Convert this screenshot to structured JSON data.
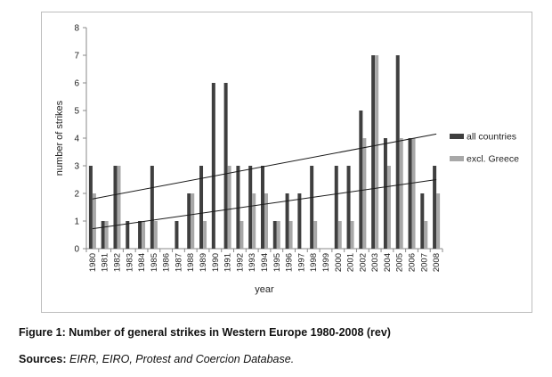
{
  "chart_data": {
    "type": "bar",
    "title": "",
    "xlabel": "year",
    "ylabel": "number of strikes",
    "ylim": [
      0,
      8
    ],
    "yticks": [
      "0",
      "1",
      "2",
      "3",
      "4",
      "5",
      "6",
      "7",
      "8"
    ],
    "categories": [
      "1980",
      "1981",
      "1982",
      "1983",
      "1984",
      "1985",
      "1986",
      "1987",
      "1988",
      "1989",
      "1990",
      "1991",
      "1992",
      "1993",
      "1994",
      "1995",
      "1996",
      "1997",
      "1998",
      "1999",
      "2000",
      "2001",
      "2002",
      "2003",
      "2004",
      "2005",
      "2006",
      "2007",
      "2008"
    ],
    "series": [
      {
        "name": "all countries",
        "color": "#3f3f3f",
        "values": [
          3,
          1,
          3,
          1,
          1,
          3,
          0,
          1,
          2,
          3,
          6,
          6,
          3,
          3,
          3,
          1,
          2,
          2,
          3,
          0,
          3,
          3,
          5,
          7,
          4,
          7,
          4,
          2,
          3
        ]
      },
      {
        "name": "excl. Greece",
        "color": "#a8a8a8",
        "values": [
          2,
          1,
          3,
          0,
          1,
          1,
          0,
          0,
          2,
          1,
          0,
          3,
          1,
          2,
          2,
          1,
          1,
          0,
          1,
          0,
          1,
          1,
          4,
          7,
          3,
          4,
          4,
          1,
          2
        ]
      }
    ],
    "trendlines": [
      {
        "series": "all countries",
        "start": 1.8,
        "end": 4.15
      },
      {
        "series": "excl. Greece",
        "start": 0.72,
        "end": 2.5
      }
    ],
    "legend_position": "right"
  },
  "caption": {
    "figure": "Figure 1: Number of general strikes in Western Europe 1980-2008 (rev)",
    "sources_label": "Sources:",
    "sources_text": "EIRR, EIRO, Protest and Coercion Database."
  }
}
